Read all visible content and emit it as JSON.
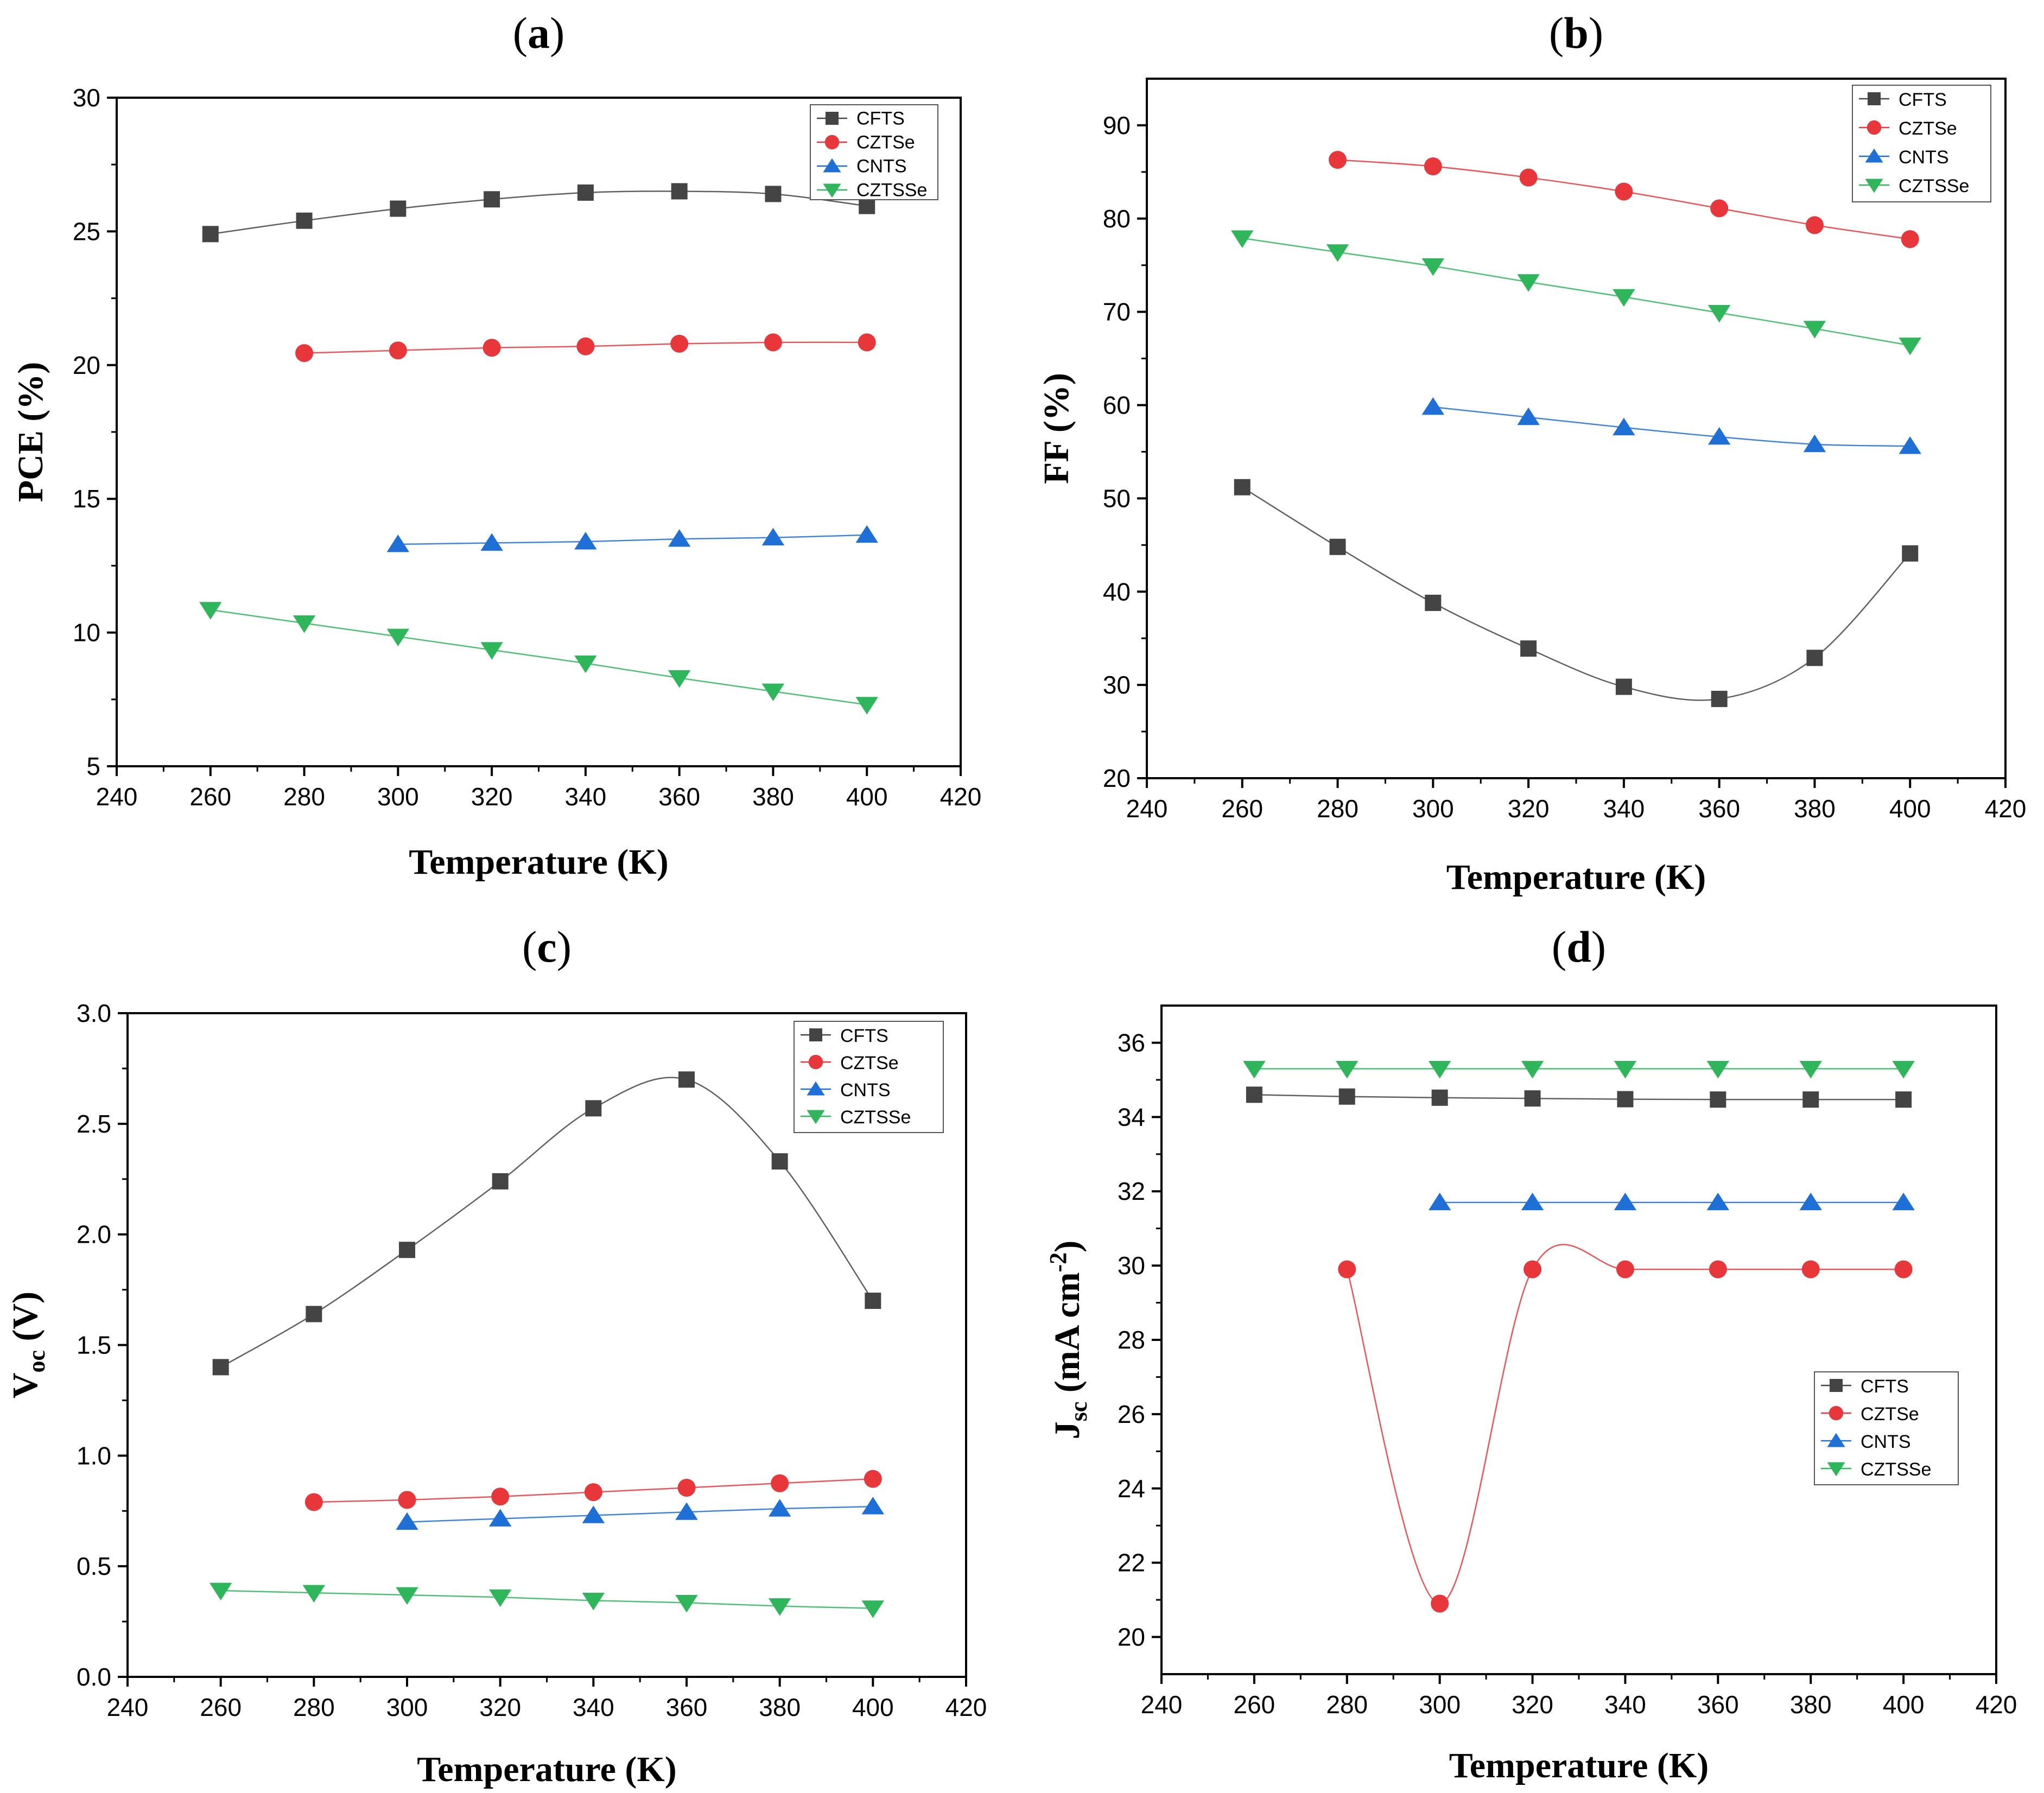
{
  "chart_data": [
    {
      "id": "a",
      "type": "line",
      "panel_label": "(a)",
      "title_letter": "a",
      "xlabel": "Temperature (K)",
      "ylabel": "PCE (%)",
      "xlim": [
        240,
        420
      ],
      "ylim": [
        5,
        30
      ],
      "xticks": [
        240,
        260,
        280,
        300,
        320,
        340,
        360,
        380,
        400,
        420
      ],
      "yticks": [
        5,
        10,
        15,
        20,
        25,
        30
      ],
      "ytick_labels": [
        "5",
        "10",
        "15",
        "20",
        "25",
        "30"
      ],
      "legend_position": "top-right",
      "series": [
        {
          "name": "CFTS",
          "color": "#444444",
          "marker": "square",
          "x": [
            260,
            280,
            300,
            320,
            340,
            360,
            380,
            400
          ],
          "y": [
            24.9,
            25.4,
            25.85,
            26.2,
            26.45,
            26.5,
            26.4,
            25.95
          ]
        },
        {
          "name": "CZTSe",
          "color": "#e8373a",
          "marker": "circle",
          "x": [
            280,
            300,
            320,
            340,
            360,
            380,
            400
          ],
          "y": [
            20.45,
            20.55,
            20.65,
            20.7,
            20.8,
            20.85,
            20.85
          ]
        },
        {
          "name": "CNTS",
          "color": "#1e6fd6",
          "marker": "triangle-up",
          "x": [
            300,
            320,
            340,
            360,
            380,
            400
          ],
          "y": [
            13.3,
            13.35,
            13.4,
            13.5,
            13.55,
            13.65
          ]
        },
        {
          "name": "CZTSSe",
          "color": "#2fb65a",
          "marker": "triangle-down",
          "x": [
            260,
            280,
            300,
            320,
            340,
            360,
            380,
            400
          ],
          "y": [
            10.85,
            10.35,
            9.85,
            9.35,
            8.85,
            8.3,
            7.8,
            7.3
          ]
        }
      ]
    },
    {
      "id": "b",
      "type": "line",
      "panel_label": "(b)",
      "title_letter": "b",
      "xlabel": "Temperature (K)",
      "ylabel": "FF (%)",
      "xlim": [
        240,
        420
      ],
      "ylim": [
        20,
        95
      ],
      "xticks": [
        240,
        260,
        280,
        300,
        320,
        340,
        360,
        380,
        400,
        420
      ],
      "yticks": [
        20,
        30,
        40,
        50,
        60,
        70,
        80,
        90
      ],
      "ytick_labels": [
        "20",
        "30",
        "40",
        "50",
        "60",
        "70",
        "80",
        "90"
      ],
      "legend_position": "top-right",
      "series": [
        {
          "name": "CFTS",
          "color": "#444444",
          "marker": "square",
          "x": [
            260,
            280,
            300,
            320,
            340,
            360,
            380,
            400
          ],
          "y": [
            51.2,
            44.8,
            38.8,
            33.9,
            29.8,
            28.5,
            32.9,
            44.1
          ]
        },
        {
          "name": "CZTSe",
          "color": "#e8373a",
          "marker": "circle",
          "x": [
            280,
            300,
            320,
            340,
            360,
            380,
            400
          ],
          "y": [
            86.3,
            85.6,
            84.4,
            82.9,
            81.1,
            79.3,
            77.8
          ]
        },
        {
          "name": "CNTS",
          "color": "#1e6fd6",
          "marker": "triangle-up",
          "x": [
            300,
            320,
            340,
            360,
            380,
            400
          ],
          "y": [
            59.8,
            58.7,
            57.6,
            56.6,
            55.8,
            55.6
          ]
        },
        {
          "name": "CZTSSe",
          "color": "#2fb65a",
          "marker": "triangle-down",
          "x": [
            260,
            280,
            300,
            320,
            340,
            360,
            380,
            400
          ],
          "y": [
            77.9,
            76.4,
            74.9,
            73.2,
            71.6,
            69.9,
            68.2,
            66.4
          ]
        }
      ]
    },
    {
      "id": "c",
      "type": "line",
      "panel_label": "(c)",
      "title_letter": "c",
      "xlabel": "Temperature (K)",
      "ylabel": "V",
      "ylabel_sub": "oc",
      "ylabel_unit": " (V)",
      "xlim": [
        240,
        420
      ],
      "ylim": [
        0,
        3
      ],
      "xticks": [
        240,
        260,
        280,
        300,
        320,
        340,
        360,
        380,
        400,
        420
      ],
      "yticks": [
        0,
        0.5,
        1,
        1.5,
        2,
        2.5,
        3
      ],
      "ytick_labels": [
        "0.0",
        "0.5",
        "1.0",
        "1.5",
        "2.0",
        "2.5",
        "3.0"
      ],
      "legend_position": "top-right",
      "series": [
        {
          "name": "CFTS",
          "color": "#444444",
          "marker": "square",
          "x": [
            260,
            280,
            300,
            320,
            340,
            360,
            380,
            400
          ],
          "y": [
            1.4,
            1.64,
            1.93,
            2.24,
            2.57,
            2.7,
            2.33,
            1.7
          ]
        },
        {
          "name": "CZTSe",
          "color": "#e8373a",
          "marker": "circle",
          "x": [
            280,
            300,
            320,
            340,
            360,
            380,
            400
          ],
          "y": [
            0.79,
            0.8,
            0.815,
            0.835,
            0.855,
            0.875,
            0.895
          ]
        },
        {
          "name": "CNTS",
          "color": "#1e6fd6",
          "marker": "triangle-up",
          "x": [
            300,
            320,
            340,
            360,
            380,
            400
          ],
          "y": [
            0.7,
            0.715,
            0.73,
            0.745,
            0.76,
            0.77
          ]
        },
        {
          "name": "CZTSSe",
          "color": "#2fb65a",
          "marker": "triangle-down",
          "x": [
            260,
            280,
            300,
            320,
            340,
            360,
            380,
            400
          ],
          "y": [
            0.39,
            0.38,
            0.37,
            0.36,
            0.345,
            0.335,
            0.32,
            0.31
          ]
        }
      ]
    },
    {
      "id": "d",
      "type": "line",
      "panel_label": "(d)",
      "title_letter": "d",
      "xlabel": "Temperature (K)",
      "ylabel": "J",
      "ylabel_sub": "sc",
      "ylabel_unit": " (mA cm",
      "ylabel_sup": "-2",
      "ylabel_close": ")",
      "xlim": [
        240,
        420
      ],
      "ylim": [
        19,
        37
      ],
      "xticks": [
        240,
        260,
        280,
        300,
        320,
        340,
        360,
        380,
        400,
        420
      ],
      "yticks": [
        20,
        22,
        24,
        26,
        28,
        30,
        32,
        34,
        36
      ],
      "ytick_labels": [
        "20",
        "22",
        "24",
        "26",
        "28",
        "30",
        "32",
        "34",
        "36"
      ],
      "legend_position": "middle-right",
      "series": [
        {
          "name": "CFTS",
          "color": "#444444",
          "marker": "square",
          "x": [
            260,
            280,
            300,
            320,
            340,
            360,
            380,
            400
          ],
          "y": [
            34.6,
            34.55,
            34.52,
            34.5,
            34.48,
            34.47,
            34.47,
            34.47
          ]
        },
        {
          "name": "CZTSe",
          "color": "#e8373a",
          "marker": "circle",
          "x": [
            280,
            300,
            320,
            340,
            360,
            380,
            400
          ],
          "y": [
            29.9,
            20.9,
            29.9,
            29.9,
            29.9,
            29.9,
            29.9
          ]
        },
        {
          "name": "CNTS",
          "color": "#1e6fd6",
          "marker": "triangle-up",
          "x": [
            300,
            320,
            340,
            360,
            380,
            400
          ],
          "y": [
            31.7,
            31.7,
            31.7,
            31.7,
            31.7,
            31.7
          ]
        },
        {
          "name": "CZTSSe",
          "color": "#2fb65a",
          "marker": "triangle-down",
          "x": [
            260,
            280,
            300,
            320,
            340,
            360,
            380,
            400
          ],
          "y": [
            35.3,
            35.3,
            35.3,
            35.3,
            35.3,
            35.3,
            35.3,
            35.3
          ]
        }
      ]
    }
  ]
}
